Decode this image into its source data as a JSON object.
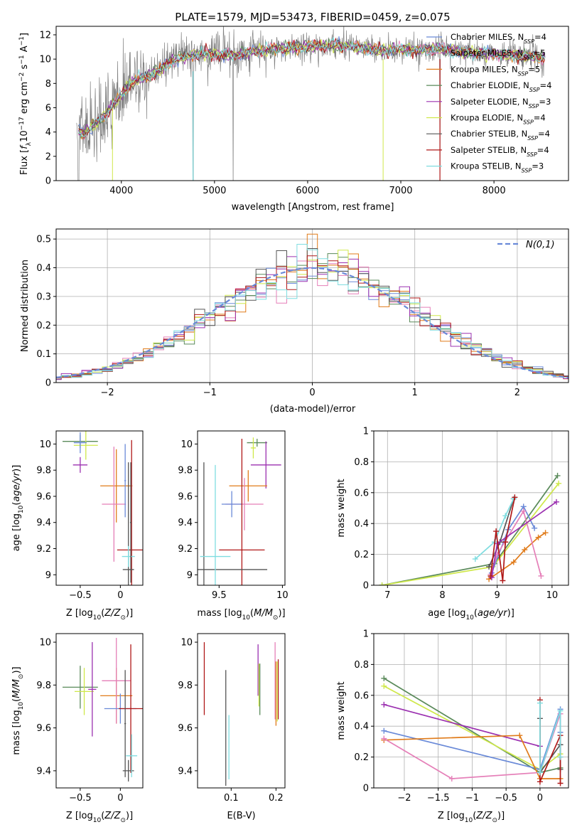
{
  "figure": {
    "title": "PLATE=1579, MJD=53473, FIBERID=0459, z=0.075"
  },
  "colors": {
    "Chabrier MILES": "#6a8ad8",
    "Salpeter MILES": "#e57fb8",
    "Kroupa MILES": "#e07b1a",
    "Chabrier ELODIE": "#5a8a5a",
    "Salpeter ELODIE": "#9b30b0",
    "Kroupa ELODIE": "#cfe84a",
    "Chabrier STELIB": "#555555",
    "Salpeter STELIB": "#b01818",
    "Kroupa STELIB": "#7fdde0",
    "data": "#808080",
    "normal": "#6a8ad8"
  },
  "chart_data": [
    {
      "id": "spectrum",
      "type": "line",
      "xlabel": "wavelength [Angstrom, rest frame]",
      "ylabel": "Flux [f_λ 10^-17 erg cm^-2 s^-1 A^-1]",
      "xlim": [
        3300,
        8800
      ],
      "ylim": [
        0,
        12.7
      ],
      "xticks": [
        4000,
        5000,
        6000,
        7000,
        8000
      ],
      "yticks": [
        0,
        2,
        4,
        6,
        8,
        10,
        12
      ],
      "legend": [
        {
          "name": "Chabrier MILES",
          "nssp": "4"
        },
        {
          "name": "Salpeter MILES",
          "nssp": "5"
        },
        {
          "name": "Kroupa MILES",
          "nssp": "5"
        },
        {
          "name": "Chabrier ELODIE",
          "nssp": "4"
        },
        {
          "name": "Salpeter ELODIE",
          "nssp": "3"
        },
        {
          "name": "Kroupa ELODIE",
          "nssp": "4"
        },
        {
          "name": "Chabrier STELIB",
          "nssp": "4"
        },
        {
          "name": "Salpeter STELIB",
          "nssp": "4"
        },
        {
          "name": "Kroupa STELIB",
          "nssp": "3"
        }
      ],
      "continuum": [
        [
          3520,
          4.2
        ],
        [
          3600,
          3.8
        ],
        [
          3700,
          4.6
        ],
        [
          3800,
          5.2
        ],
        [
          3900,
          6.2
        ],
        [
          4000,
          7.0
        ],
        [
          4100,
          8.0
        ],
        [
          4200,
          8.4
        ],
        [
          4300,
          8.6
        ],
        [
          4400,
          9.0
        ],
        [
          4500,
          9.7
        ],
        [
          4600,
          10.0
        ],
        [
          4700,
          10.2
        ],
        [
          4800,
          10.4
        ],
        [
          4900,
          10.5
        ],
        [
          5000,
          10.4
        ],
        [
          5200,
          10.3
        ],
        [
          5400,
          10.6
        ],
        [
          5600,
          10.8
        ],
        [
          5800,
          10.9
        ],
        [
          6000,
          11.0
        ],
        [
          6200,
          11.1
        ],
        [
          6400,
          11.1
        ],
        [
          6600,
          10.9
        ],
        [
          6800,
          10.7
        ],
        [
          7000,
          10.8
        ],
        [
          7200,
          10.7
        ],
        [
          7400,
          10.9
        ],
        [
          7600,
          10.6
        ],
        [
          7800,
          10.5
        ],
        [
          8000,
          10.4
        ],
        [
          8200,
          10.3
        ],
        [
          8400,
          10.2
        ],
        [
          8550,
          10.1
        ]
      ]
    },
    {
      "id": "residuals",
      "type": "line",
      "xlabel": "(data-model)/error",
      "ylabel": "Normed distribution",
      "xlim": [
        -2.5,
        2.5
      ],
      "ylim": [
        0,
        0.535
      ],
      "xticks": [
        -2,
        -1,
        0,
        1,
        2
      ],
      "yticks": [
        0.0,
        0.1,
        0.2,
        0.3,
        0.4,
        0.5
      ],
      "legend_label": "N(0,1)",
      "bin_width": 0.1
    },
    {
      "id": "age-vs-Z",
      "type": "scatter",
      "xlabel": "Z [log10(Z/Z_sun)]",
      "ylabel": "age [log10(age/yr)]",
      "xlim": [
        -0.8,
        0.28
      ],
      "ylim": [
        8.92,
        10.1
      ],
      "xticks": [
        -0.5,
        0.0
      ],
      "yticks": [
        9.0,
        9.2,
        9.4,
        9.6,
        9.8,
        10.0
      ],
      "points": [
        {
          "model": "Chabrier ELODIE",
          "x": -0.5,
          "xerr": 0.22,
          "y": 10.02,
          "yerr": 0.05
        },
        {
          "model": "Kroupa ELODIE",
          "x": -0.43,
          "xerr": 0.15,
          "y": 9.99,
          "yerr": 0.11
        },
        {
          "model": "Chabrier MILES",
          "x": -0.5,
          "xerr": 0.08,
          "y": 10.01,
          "yerr": 0.08
        },
        {
          "model": "Salpeter ELODIE",
          "x": -0.5,
          "xerr": 0.09,
          "y": 9.84,
          "yerr": 0.06
        },
        {
          "model": "Kroupa MILES",
          "x": -0.05,
          "xerr": 0.2,
          "y": 9.68,
          "yerr": 0.28
        },
        {
          "model": "Salpeter MILES",
          "x": -0.08,
          "xerr": 0.15,
          "y": 9.54,
          "yerr": 0.44
        },
        {
          "model": "Chabrier MILES",
          "x": 0.06,
          "xerr": 0.01,
          "y": 9.72,
          "yerr": 0.28
        },
        {
          "model": "Salpeter STELIB",
          "x": 0.14,
          "xerr": 0.18,
          "y": 9.19,
          "yerr": 0.84
        },
        {
          "model": "Chabrier STELIB",
          "x": 0.1,
          "xerr": 0.07,
          "y": 9.04,
          "yerr": 0.82
        },
        {
          "model": "Kroupa STELIB",
          "x": 0.1,
          "xerr": 0.08,
          "y": 9.14,
          "yerr": 0.08
        },
        {
          "model": "Chabrier STELIB",
          "x": 0.13,
          "xerr": 0.01,
          "y": 9.4,
          "yerr": 0.46
        }
      ]
    },
    {
      "id": "age-vs-mass",
      "type": "scatter",
      "xlabel": "mass [log10(M/M_sun)]",
      "ylabel": "",
      "xlim": [
        9.33,
        10.02
      ],
      "ylim": [
        8.92,
        10.1
      ],
      "xticks": [
        9.5,
        10.0
      ],
      "yticks": [
        9.0,
        9.2,
        9.4,
        9.6,
        9.8,
        10.0
      ],
      "points": [
        {
          "model": "Chabrier ELODIE",
          "x": 9.8,
          "xerr": 0.08,
          "y": 10.01,
          "yerr": 0.03
        },
        {
          "model": "Salpeter ELODIE",
          "x": 9.87,
          "xerr": 0.12,
          "y": 9.84,
          "yerr": 0.18
        },
        {
          "model": "Kroupa ELODIE",
          "x": 9.77,
          "xerr": 0.02,
          "y": 9.97,
          "yerr": 0.08
        },
        {
          "model": "Kroupa MILES",
          "x": 9.73,
          "xerr": 0.15,
          "y": 9.68,
          "yerr": 0.12
        },
        {
          "model": "Salpeter MILES",
          "x": 9.7,
          "xerr": 0.15,
          "y": 9.54,
          "yerr": 0.2
        },
        {
          "model": "Chabrier MILES",
          "x": 9.6,
          "xerr": 0.08,
          "y": 9.54,
          "yerr": 0.1
        },
        {
          "model": "Salpeter STELIB",
          "x": 9.68,
          "xerr": 0.18,
          "y": 9.19,
          "yerr": 0.85
        },
        {
          "model": "Chabrier STELIB",
          "x": 9.38,
          "xerr": 0.5,
          "y": 9.04,
          "yerr": 0.82
        },
        {
          "model": "Kroupa STELIB",
          "x": 9.47,
          "xerr": 0.12,
          "y": 9.14,
          "yerr": 0.7
        }
      ]
    },
    {
      "id": "weight-vs-age",
      "type": "line",
      "xlabel": "age [log10(age/yr)]",
      "ylabel": "mass weight",
      "xlim": [
        6.75,
        10.3
      ],
      "ylim": [
        0,
        1
      ],
      "xticks": [
        7,
        8,
        9,
        10
      ],
      "yticks": [
        0.0,
        0.2,
        0.4,
        0.6,
        0.8,
        1.0
      ],
      "series": [
        {
          "model": "Chabrier ELODIE",
          "x": [
            6.9,
            8.95,
            10.1
          ],
          "y": [
            0.0,
            0.14,
            0.71
          ]
        },
        {
          "model": "Kroupa ELODIE",
          "x": [
            6.9,
            8.92,
            10.12
          ],
          "y": [
            0.0,
            0.12,
            0.66
          ]
        },
        {
          "model": "Chabrier STELIB",
          "x": [
            8.85,
            9.05,
            9.3
          ],
          "y": [
            0.12,
            0.28,
            0.56
          ]
        },
        {
          "model": "Kroupa STELIB",
          "x": [
            8.6,
            8.95,
            9.15,
            9.3
          ],
          "y": [
            0.17,
            0.28,
            0.45,
            0.56
          ]
        },
        {
          "model": "Kroupa MILES",
          "x": [
            8.85,
            9.3,
            9.5,
            9.75,
            9.88
          ],
          "y": [
            0.04,
            0.15,
            0.23,
            0.31,
            0.34
          ]
        },
        {
          "model": "Chabrier MILES",
          "x": [
            8.9,
            9.2,
            9.48,
            9.68
          ],
          "y": [
            0.08,
            0.36,
            0.51,
            0.37
          ]
        },
        {
          "model": "Salpeter MILES",
          "x": [
            8.88,
            9.0,
            9.48,
            9.8
          ],
          "y": [
            0.07,
            0.2,
            0.48,
            0.06
          ]
        },
        {
          "model": "Salpeter ELODIE",
          "x": [
            8.9,
            9.0,
            10.08
          ],
          "y": [
            0.05,
            0.27,
            0.54
          ]
        },
        {
          "model": "Salpeter STELIB",
          "x": [
            8.88,
            8.98,
            9.1,
            9.15,
            9.32
          ],
          "y": [
            0.06,
            0.35,
            0.03,
            0.28,
            0.57
          ]
        }
      ]
    },
    {
      "id": "mass-vs-Z",
      "type": "scatter",
      "xlabel": "Z [log10(Z/Z_sun)]",
      "ylabel": "mass [log10(M/M_sun)]",
      "xlim": [
        -0.8,
        0.28
      ],
      "ylim": [
        9.32,
        10.04
      ],
      "xticks": [
        -0.5,
        0.0
      ],
      "yticks": [
        9.4,
        9.6,
        9.8,
        10.0
      ],
      "points": [
        {
          "model": "Chabrier ELODIE",
          "x": -0.5,
          "xerr": 0.22,
          "y": 9.79,
          "yerr": 0.1
        },
        {
          "model": "Kroupa ELODIE",
          "x": -0.45,
          "xerr": 0.12,
          "y": 9.77,
          "yerr": 0.11
        },
        {
          "model": "Salpeter ELODIE",
          "x": -0.35,
          "xerr": 0.05,
          "y": 9.78,
          "yerr": 0.22
        },
        {
          "model": "Kroupa MILES",
          "x": -0.05,
          "xerr": 0.2,
          "y": 9.75,
          "yerr": 0.13
        },
        {
          "model": "Salpeter MILES",
          "x": -0.05,
          "xerr": 0.18,
          "y": 9.82,
          "yerr": 0.2
        },
        {
          "model": "Chabrier MILES",
          "x": 0.0,
          "xerr": 0.2,
          "y": 9.69,
          "yerr": 0.07
        },
        {
          "model": "Salpeter STELIB",
          "x": 0.13,
          "xerr": 0.15,
          "y": 9.69,
          "yerr": 0.3
        },
        {
          "model": "Chabrier STELIB",
          "x": 0.1,
          "xerr": 0.07,
          "y": 9.4,
          "yerr": 0.05
        },
        {
          "model": "Kroupa STELIB",
          "x": 0.14,
          "xerr": 0.07,
          "y": 9.47,
          "yerr": 0.1
        },
        {
          "model": "Chabrier STELIB",
          "x": 0.06,
          "xerr": 0.01,
          "y": 9.62,
          "yerr": 0.25
        }
      ]
    },
    {
      "id": "mass-vs-EBV",
      "type": "scatter",
      "xlabel": "E(B-V)",
      "ylabel": "",
      "xlim": [
        0.025,
        0.22
      ],
      "ylim": [
        9.32,
        10.04
      ],
      "xticks": [
        0.1,
        0.2
      ],
      "yticks": [
        9.4,
        9.6,
        9.8,
        10.0
      ],
      "points": [
        {
          "model": "Salpeter STELIB",
          "x": 0.04,
          "y": 9.83,
          "yerr": 0.17
        },
        {
          "model": "Chabrier STELIB",
          "x": 0.088,
          "y": 9.6,
          "yerr": 0.27
        },
        {
          "model": "Kroupa STELIB",
          "x": 0.095,
          "y": 9.51,
          "yerr": 0.15
        },
        {
          "model": "Salpeter ELODIE",
          "x": 0.16,
          "y": 9.87,
          "yerr": 0.12
        },
        {
          "model": "Chabrier ELODIE",
          "x": 0.164,
          "y": 9.78,
          "yerr": 0.12
        },
        {
          "model": "Kroupa ELODIE",
          "x": 0.162,
          "y": 9.8,
          "yerr": 0.1
        },
        {
          "model": "Salpeter MILES",
          "x": 0.198,
          "y": 9.82,
          "yerr": 0.18
        },
        {
          "model": "Kroupa MILES",
          "x": 0.2,
          "y": 9.76,
          "yerr": 0.15
        },
        {
          "model": "Salpeter STELIB",
          "x": 0.205,
          "y": 9.78,
          "yerr": 0.14
        },
        {
          "model": "Kroupa ELODIE",
          "x": 0.203,
          "y": 9.77,
          "yerr": 0.14
        }
      ]
    },
    {
      "id": "weight-vs-Z",
      "type": "line",
      "xlabel": "Z [log10(Z/Z_sun)]",
      "ylabel": "mass weight",
      "xlim": [
        -2.45,
        0.42
      ],
      "ylim": [
        0,
        1
      ],
      "xticks": [
        -2.0,
        -1.5,
        -1.0,
        -0.5,
        0.0
      ],
      "yticks": [
        0.0,
        0.2,
        0.4,
        0.6,
        0.8,
        1.0
      ],
      "series": [
        {
          "model": "Chabrier ELODIE",
          "x": [
            -2.3,
            0.0,
            0.3
          ],
          "y": [
            0.71,
            0.1,
            0.13
          ]
        },
        {
          "model": "Kroupa ELODIE",
          "x": [
            -2.3,
            0.0,
            0.3
          ],
          "y": [
            0.66,
            0.12,
            0.22
          ]
        },
        {
          "model": "Salpeter ELODIE",
          "x": [
            -2.3,
            0.0
          ],
          "y": [
            0.54,
            0.27
          ]
        },
        {
          "model": "Chabrier MILES",
          "x": [
            -2.3,
            0.0,
            0.3,
            0.3
          ],
          "y": [
            0.37,
            0.12,
            0.51,
            0.36
          ]
        },
        {
          "model": "Kroupa MILES",
          "x": [
            -2.3,
            -0.3,
            0.0,
            0.3
          ],
          "y": [
            0.31,
            0.34,
            0.06,
            0.06
          ]
        },
        {
          "model": "Salpeter MILES",
          "x": [
            -2.3,
            -1.3,
            0.0,
            0.3,
            0.3
          ],
          "y": [
            0.32,
            0.06,
            0.1,
            0.48,
            0.2
          ]
        },
        {
          "model": "Chabrier STELIB",
          "x": [
            0.0,
            0.0,
            0.3,
            0.3
          ],
          "y": [
            0.45,
            0.1,
            0.28,
            0.12
          ]
        },
        {
          "model": "Salpeter STELIB",
          "x": [
            0.0,
            0.0,
            0.3,
            0.3
          ],
          "y": [
            0.57,
            0.04,
            0.34,
            0.03
          ]
        },
        {
          "model": "Kroupa STELIB",
          "x": [
            0.0,
            0.0,
            0.3,
            0.3
          ],
          "y": [
            0.55,
            0.1,
            0.5,
            0.2
          ]
        }
      ]
    }
  ]
}
